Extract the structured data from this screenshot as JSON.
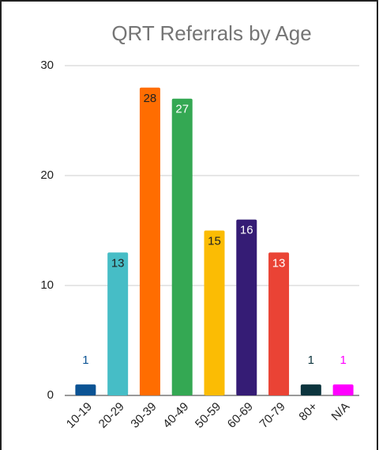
{
  "chart_data": {
    "type": "bar",
    "title": "QRT Referrals by Age",
    "categories": [
      "10-19",
      "20-29",
      "30-39",
      "40-49",
      "50-59",
      "60-69",
      "70-79",
      "80+",
      "N/A"
    ],
    "values": [
      1,
      13,
      28,
      27,
      15,
      16,
      13,
      1,
      1
    ],
    "colors": [
      "#0b5394",
      "#46bdc6",
      "#ff6d01",
      "#34a853",
      "#fbbc04",
      "#351c75",
      "#ea4335",
      "#0c343d",
      "#ff00ff"
    ],
    "label_colors": [
      "#0b5394",
      "#222222",
      "#222222",
      "#ffffff",
      "#222222",
      "#ffffff",
      "#ffffff",
      "#0c343d",
      "#ff00ff"
    ],
    "ylim": [
      0,
      30
    ],
    "yticks": [
      0,
      10,
      20,
      30
    ],
    "grid": true
  }
}
